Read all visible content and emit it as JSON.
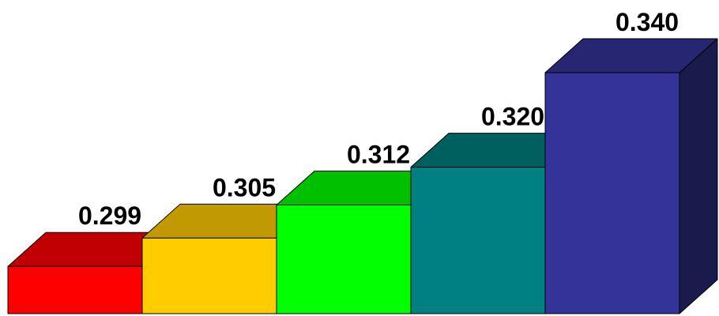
{
  "chart_data": {
    "type": "bar",
    "categories": [],
    "values": [
      0.299,
      0.305,
      0.312,
      0.32,
      0.34
    ],
    "labels": [
      "0.299",
      "0.305",
      "0.312",
      "0.320",
      "0.340"
    ],
    "colors": [
      {
        "front": "#ff0000",
        "top": "#c00000",
        "side": "#800000"
      },
      {
        "front": "#ffcc00",
        "top": "#c09a00",
        "side": "#806600"
      },
      {
        "front": "#00ff00",
        "top": "#00c000",
        "side": "#008000"
      },
      {
        "front": "#008080",
        "top": "#006060",
        "side": "#004040"
      },
      {
        "front": "#333399",
        "top": "#262673",
        "side": "#1a1a4d"
      }
    ],
    "ylim": [
      0.289,
      0.345
    ],
    "title": "",
    "xlabel": "",
    "ylabel": "",
    "grid": false,
    "legend": "none",
    "style": "3d-stepped"
  }
}
